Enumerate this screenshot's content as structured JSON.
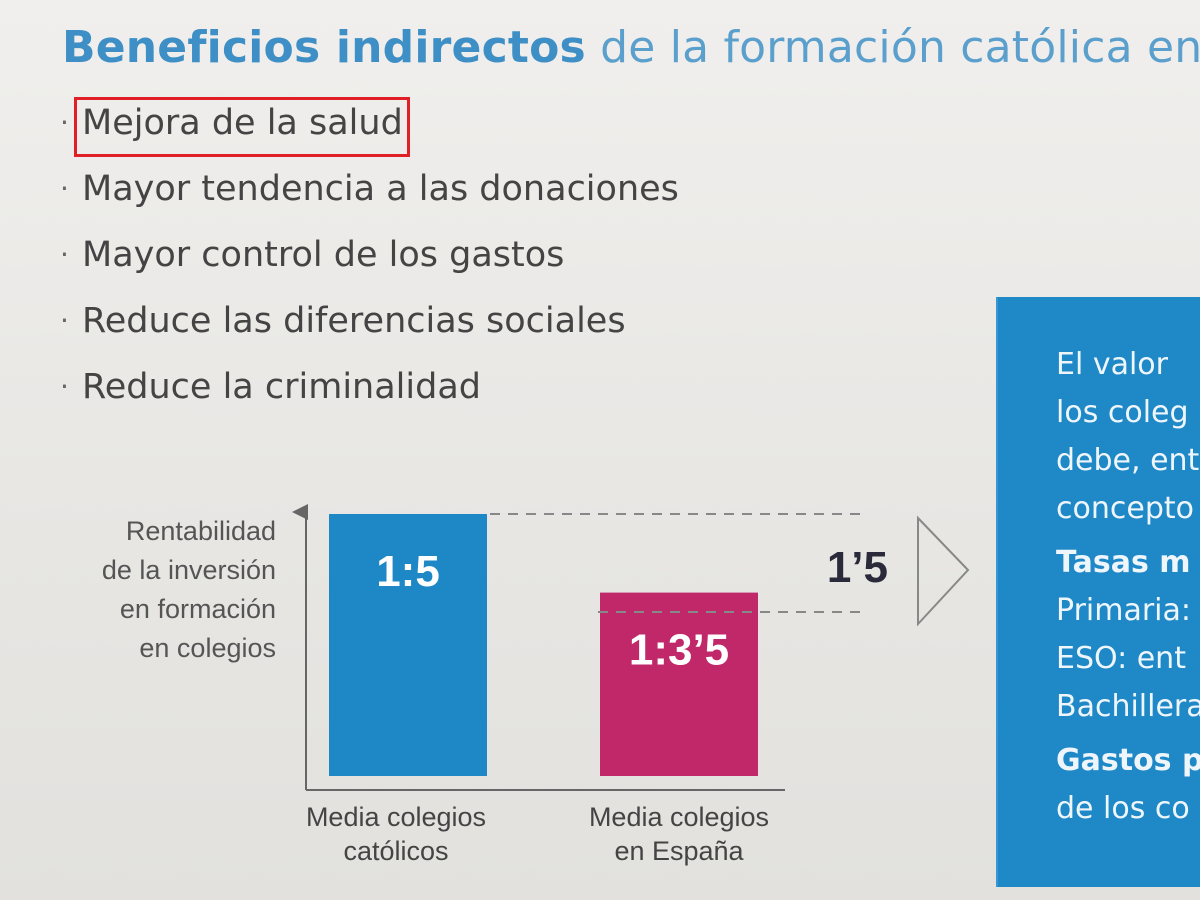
{
  "header": {
    "title_bold": "Beneficios indirectos",
    "title_rest": "de la formación católica en c"
  },
  "bullets": [
    {
      "dot": "·",
      "text": "Mejora de la salud"
    },
    {
      "dot": "·",
      "text": "Mayor tendencia a las donaciones"
    },
    {
      "dot": "·",
      "text": "Mayor control de los gastos"
    },
    {
      "dot": "·",
      "text": "Reduce las diferencias sociales"
    },
    {
      "dot": "·",
      "text": "Reduce la criminalidad"
    }
  ],
  "colors": {
    "title": "#3e8fc5",
    "bar_catholic": "#1e88c7",
    "bar_spain": "#c0286a",
    "panel": "#1f88c6",
    "highlight": "#e01f26"
  },
  "chart_data": {
    "type": "bar",
    "ylabel": [
      "Rentabilidad",
      "de la inversión",
      "en formación",
      "en colegios"
    ],
    "categories": [
      [
        "Media colegios",
        "católicos"
      ],
      [
        "Media colegios",
        "en España"
      ]
    ],
    "values": [
      5,
      3.5
    ],
    "value_labels": [
      "1:5",
      "1:3’5"
    ],
    "difference_label": "1’5",
    "ylim": [
      0,
      5.1
    ],
    "grid": false
  },
  "panel": {
    "lines": [
      {
        "text": "El valor",
        "bold": false
      },
      {
        "text": "los coleg",
        "bold": false
      },
      {
        "text": "debe, ent",
        "bold": false
      },
      {
        "text": "concepto",
        "bold": false
      },
      {
        "text": "Tasas m",
        "bold": true
      },
      {
        "text": "Primaria:",
        "bold": false
      },
      {
        "text": "ESO: ent",
        "bold": false
      },
      {
        "text": "Bachillera",
        "bold": false
      },
      {
        "text": "Gastos p",
        "bold": true
      },
      {
        "text": "de los co",
        "bold": false
      }
    ]
  }
}
